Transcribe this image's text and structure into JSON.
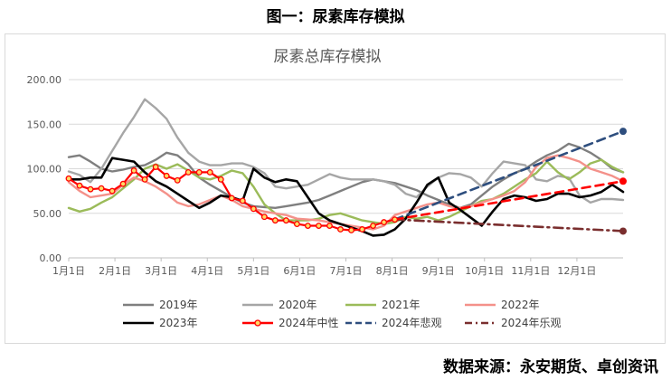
{
  "figure_title": "图一：尿素库存模拟",
  "source": "数据来源：永安期货、卓创资讯",
  "chart_data": {
    "type": "line",
    "title": "尿素总库存模拟",
    "xlabel": "",
    "ylabel": "",
    "ylim": [
      0,
      200
    ],
    "yticks": [
      "0.00",
      "50.00",
      "100.00",
      "150.00",
      "200.00"
    ],
    "xticks": [
      "1月1日",
      "2月1日",
      "3月1日",
      "4月1日",
      "5月1日",
      "6月1日",
      "7月1日",
      "8月1日",
      "9月1日",
      "10月1日",
      "11月1日",
      "12月1日"
    ],
    "x_week_range": [
      1,
      52
    ],
    "grid": "horizontal",
    "legend_position": "bottom",
    "series": [
      {
        "name": "2019年",
        "color": "#7f7f7f",
        "style": "solid",
        "x": [
          1,
          2,
          3,
          4,
          5,
          6,
          7,
          8,
          9,
          10,
          11,
          12,
          13,
          14,
          15,
          16,
          17,
          18,
          19,
          20,
          21,
          22,
          23,
          24,
          25,
          26,
          27,
          28,
          29,
          30,
          31,
          32,
          33,
          34,
          35,
          36,
          37,
          38,
          39,
          40,
          41,
          42,
          43,
          44,
          45,
          46,
          47,
          48,
          49,
          50,
          51,
          52
        ],
        "values": [
          113,
          115,
          108,
          100,
          97,
          99,
          102,
          104,
          110,
          118,
          115,
          105,
          90,
          82,
          75,
          68,
          62,
          58,
          57,
          56,
          58,
          60,
          62,
          65,
          70,
          75,
          80,
          85,
          88,
          86,
          84,
          80,
          76,
          70,
          65,
          60,
          56,
          60,
          70,
          80,
          88,
          95,
          100,
          108,
          115,
          120,
          128,
          124,
          118,
          110,
          100,
          96
        ]
      },
      {
        "name": "2020年",
        "color": "#a6a6a6",
        "style": "solid",
        "x": [
          1,
          2,
          3,
          4,
          5,
          6,
          7,
          8,
          9,
          10,
          11,
          12,
          13,
          14,
          15,
          16,
          17,
          18,
          19,
          20,
          21,
          22,
          23,
          24,
          25,
          26,
          27,
          28,
          29,
          30,
          31,
          32,
          33,
          34,
          35,
          36,
          37,
          38,
          39,
          40,
          41,
          42,
          43,
          44,
          45,
          46,
          47,
          48,
          49,
          50,
          51,
          52
        ],
        "values": [
          97,
          93,
          85,
          100,
          120,
          140,
          158,
          178,
          168,
          156,
          135,
          118,
          108,
          104,
          104,
          106,
          106,
          102,
          95,
          80,
          78,
          80,
          82,
          88,
          94,
          90,
          88,
          88,
          88,
          86,
          82,
          72,
          68,
          80,
          90,
          95,
          94,
          90,
          80,
          95,
          108,
          106,
          104,
          88,
          86,
          92,
          90,
          70,
          62,
          66,
          66,
          65
        ]
      },
      {
        "name": "2021年",
        "color": "#9bbb59",
        "style": "solid",
        "x": [
          1,
          2,
          3,
          4,
          5,
          6,
          7,
          8,
          9,
          10,
          11,
          12,
          13,
          14,
          15,
          16,
          17,
          18,
          19,
          20,
          21,
          22,
          23,
          24,
          25,
          26,
          27,
          28,
          29,
          30,
          31,
          32,
          33,
          34,
          35,
          36,
          37,
          38,
          39,
          40,
          41,
          42,
          43,
          44,
          45,
          46,
          47,
          48,
          49,
          50,
          51,
          52
        ],
        "values": [
          56,
          52,
          55,
          62,
          68,
          78,
          88,
          100,
          105,
          100,
          105,
          98,
          90,
          88,
          92,
          98,
          95,
          80,
          60,
          50,
          42,
          42,
          42,
          44,
          48,
          50,
          46,
          42,
          40,
          38,
          40,
          46,
          44,
          46,
          42,
          46,
          52,
          58,
          64,
          66,
          72,
          80,
          88,
          95,
          108,
          96,
          88,
          96,
          106,
          110,
          102,
          96
        ]
      },
      {
        "name": "2022年",
        "color": "#f4918a",
        "style": "solid",
        "x": [
          1,
          2,
          3,
          4,
          5,
          6,
          7,
          8,
          9,
          10,
          11,
          12,
          13,
          14,
          15,
          16,
          17,
          18,
          19,
          20,
          21,
          22,
          23,
          24,
          25,
          26,
          27,
          28,
          29,
          30,
          31,
          32,
          33,
          34,
          35,
          36,
          37,
          38,
          39,
          40,
          41,
          42,
          43,
          44,
          45,
          46,
          47,
          48,
          49,
          50,
          51,
          52
        ],
        "values": [
          85,
          75,
          68,
          70,
          72,
          82,
          90,
          86,
          80,
          72,
          62,
          58,
          60,
          65,
          70,
          65,
          58,
          55,
          52,
          50,
          48,
          44,
          43,
          42,
          40,
          38,
          36,
          34,
          32,
          36,
          48,
          52,
          56,
          60,
          62,
          58,
          56,
          58,
          62,
          66,
          70,
          75,
          85,
          102,
          112,
          115,
          112,
          108,
          100,
          96,
          92,
          86
        ]
      },
      {
        "name": "2023年",
        "color": "#000000",
        "style": "solid",
        "x": [
          1,
          2,
          3,
          4,
          5,
          6,
          7,
          8,
          9,
          10,
          11,
          12,
          13,
          14,
          15,
          16,
          17,
          18,
          19,
          20,
          21,
          22,
          23,
          24,
          25,
          26,
          27,
          28,
          29,
          30,
          31,
          32,
          33,
          34,
          35,
          36,
          37,
          38,
          39,
          40,
          41,
          42,
          43,
          44,
          45,
          46,
          47,
          48,
          49,
          50,
          51,
          52
        ],
        "values": [
          88,
          88,
          90,
          90,
          112,
          110,
          108,
          96,
          86,
          80,
          72,
          64,
          56,
          62,
          70,
          68,
          64,
          100,
          90,
          85,
          88,
          86,
          68,
          50,
          42,
          38,
          34,
          30,
          25,
          26,
          32,
          44,
          62,
          82,
          90,
          62,
          54,
          45,
          36,
          52,
          66,
          70,
          68,
          64,
          66,
          72,
          72,
          68,
          70,
          74,
          82,
          74
        ]
      },
      {
        "name": "2024年中性",
        "color": "#ff0000",
        "style": "solid-marker",
        "x": [
          1,
          2,
          3,
          4,
          5,
          6,
          7,
          8,
          9,
          10,
          11,
          12,
          13,
          14,
          15,
          16,
          17,
          18,
          19,
          20,
          21,
          22,
          23,
          24,
          25,
          26,
          27,
          28,
          29,
          30,
          31
        ],
        "values": [
          89,
          81,
          77,
          78,
          75,
          83,
          98,
          88,
          102,
          92,
          87,
          96,
          96,
          96,
          88,
          67,
          64,
          55,
          46,
          42,
          42,
          38,
          36,
          36,
          36,
          32,
          31,
          32,
          36,
          40,
          43
        ]
      },
      {
        "name": "2024年悲观",
        "color": "#2e4e7e",
        "style": "dashed",
        "x": [
          31,
          52
        ],
        "values": [
          43,
          142
        ]
      },
      {
        "name": "2024年乐观",
        "color": "#7a2e2e",
        "style": "dashdot",
        "x": [
          31,
          52
        ],
        "values": [
          43,
          30
        ]
      },
      {
        "name": "",
        "color": "#ff0000",
        "style": "dashed",
        "x": [
          31,
          52
        ],
        "values": [
          43,
          86
        ]
      }
    ]
  }
}
